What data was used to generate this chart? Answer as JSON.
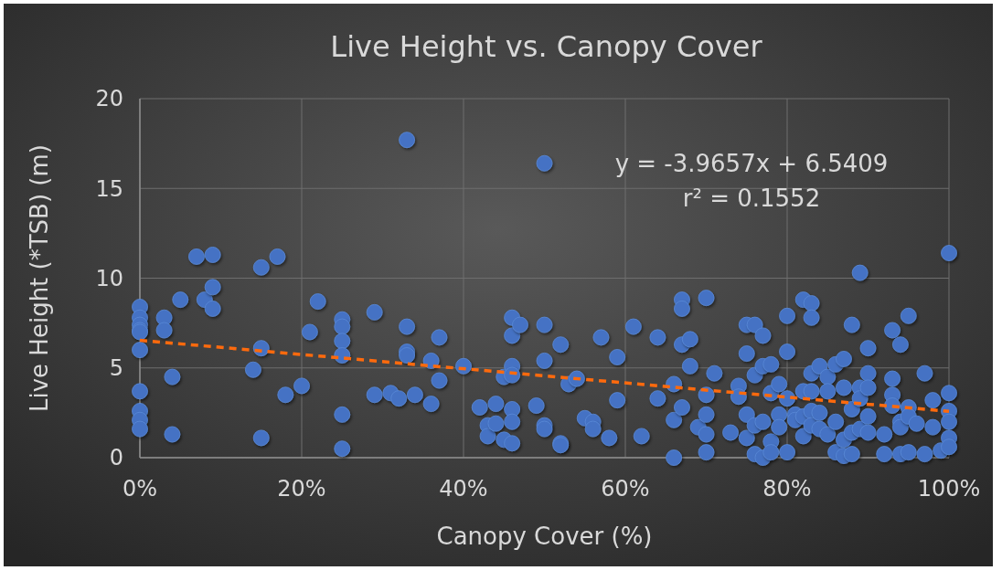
{
  "chart_data": {
    "type": "scatter",
    "title": "Live Height vs. Canopy Cover",
    "xlabel": "Canopy Cover (%)",
    "ylabel": "Live Height (*TSB) (m)",
    "xlim": [
      0,
      1
    ],
    "ylim": [
      0,
      20
    ],
    "xticks": [
      {
        "value": 0,
        "label": "0%"
      },
      {
        "value": 0.2,
        "label": "20%"
      },
      {
        "value": 0.4,
        "label": "40%"
      },
      {
        "value": 0.6,
        "label": "60%"
      },
      {
        "value": 0.8,
        "label": "80%"
      },
      {
        "value": 1,
        "label": "100%"
      }
    ],
    "yticks": [
      0,
      5,
      10,
      15,
      20
    ],
    "grid": true,
    "annotations": [
      "y = -3.9657x + 6.5409",
      "r² = 0.1552"
    ],
    "series": [
      {
        "color": "#4472c4",
        "marker": "circle",
        "x": [
          0,
          0,
          0,
          0,
          0,
          0,
          0,
          0,
          0,
          0,
          0.03,
          0.03,
          0.04,
          0.04,
          0.05,
          0.07,
          0.08,
          0.09,
          0.09,
          0.09,
          0.14,
          0.15,
          0.15,
          0.15,
          0.17,
          0.18,
          0.2,
          0.21,
          0.22,
          0.25,
          0.25,
          0.25,
          0.25,
          0.25,
          0.25,
          0.29,
          0.29,
          0.31,
          0.32,
          0.33,
          0.33,
          0.33,
          0.33,
          0.34,
          0.36,
          0.36,
          0.37,
          0.37,
          0.4,
          0.42,
          0.43,
          0.43,
          0.44,
          0.44,
          0.45,
          0.45,
          0.46,
          0.46,
          0.46,
          0.46,
          0.46,
          0.46,
          0.46,
          0.47,
          0.49,
          0.5,
          0.5,
          0.5,
          0.5,
          0.5,
          0.52,
          0.52,
          0.52,
          0.53,
          0.54,
          0.55,
          0.56,
          0.56,
          0.57,
          0.58,
          0.59,
          0.59,
          0.61,
          0.62,
          0.64,
          0.64,
          0.66,
          0.66,
          0.66,
          0.67,
          0.67,
          0.67,
          0.67,
          0.68,
          0.68,
          0.69,
          0.7,
          0.7,
          0.7,
          0.7,
          0.7,
          0.71,
          0.73,
          0.74,
          0.74,
          0.75,
          0.75,
          0.75,
          0.75,
          0.76,
          0.76,
          0.76,
          0.76,
          0.77,
          0.77,
          0.77,
          0.77,
          0.78,
          0.78,
          0.78,
          0.78,
          0.79,
          0.79,
          0.79,
          0.8,
          0.8,
          0.8,
          0.8,
          0.81,
          0.81,
          0.82,
          0.82,
          0.82,
          0.82,
          0.83,
          0.83,
          0.83,
          0.83,
          0.83,
          0.83,
          0.84,
          0.84,
          0.84,
          0.85,
          0.85,
          0.85,
          0.86,
          0.86,
          0.86,
          0.87,
          0.87,
          0.87,
          0.87,
          0.88,
          0.88,
          0.88,
          0.88,
          0.89,
          0.89,
          0.89,
          0.89,
          0.9,
          0.9,
          0.9,
          0.9,
          0.9,
          0.92,
          0.92,
          0.93,
          0.93,
          0.93,
          0.93,
          0.94,
          0.94,
          0.94,
          0.94,
          0.95,
          0.95,
          0.95,
          0.95,
          0.96,
          0.97,
          0.97,
          0.98,
          0.98,
          0.99,
          1,
          1,
          1,
          1,
          1,
          1
        ],
        "values": [
          8.4,
          7.8,
          7.4,
          7.1,
          7.0,
          6.0,
          3.7,
          2.6,
          2.1,
          1.6,
          7.8,
          7.1,
          4.5,
          1.3,
          8.8,
          11.2,
          8.8,
          11.3,
          9.5,
          8.3,
          4.9,
          10.6,
          6.1,
          1.1,
          11.2,
          3.5,
          4.0,
          7.0,
          8.7,
          7.7,
          7.3,
          6.5,
          5.7,
          2.4,
          0.5,
          8.1,
          3.5,
          3.6,
          3.3,
          17.7,
          7.3,
          5.9,
          5.7,
          3.5,
          5.4,
          3.0,
          6.7,
          4.3,
          5.1,
          2.8,
          1.8,
          1.2,
          3.0,
          1.9,
          4.5,
          1.0,
          7.8,
          6.8,
          5.1,
          4.6,
          2.7,
          2.0,
          0.8,
          7.4,
          2.9,
          16.4,
          7.4,
          5.4,
          1.8,
          1.6,
          6.3,
          0.8,
          0.7,
          4.1,
          4.4,
          2.2,
          2.0,
          1.6,
          6.7,
          1.1,
          5.6,
          3.2,
          7.3,
          1.2,
          6.7,
          3.3,
          4.1,
          2.1,
          0.0,
          8.8,
          8.3,
          6.3,
          2.8,
          6.6,
          5.1,
          1.7,
          8.9,
          3.5,
          2.4,
          1.3,
          0.3,
          4.7,
          1.4,
          4.0,
          3.4,
          7.4,
          5.8,
          2.4,
          1.1,
          7.4,
          4.6,
          1.8,
          0.2,
          6.8,
          5.1,
          2.0,
          0.0,
          5.2,
          3.6,
          0.9,
          0.3,
          4.1,
          2.4,
          1.7,
          7.9,
          5.9,
          3.3,
          0.3,
          2.4,
          2.1,
          8.8,
          3.7,
          2.3,
          1.2,
          8.6,
          7.8,
          4.7,
          3.7,
          2.6,
          1.8,
          5.1,
          2.5,
          1.6,
          4.5,
          3.7,
          1.3,
          5.2,
          2.0,
          0.3,
          5.5,
          3.9,
          1.0,
          0.1,
          7.4,
          2.7,
          1.4,
          0.2,
          10.3,
          3.9,
          3.3,
          1.6,
          6.1,
          4.7,
          3.9,
          2.3,
          1.4,
          1.3,
          0.2,
          7.1,
          4.4,
          3.5,
          2.9,
          6.3,
          2.0,
          1.7,
          0.2,
          7.9,
          2.8,
          2.3,
          0.3,
          1.9,
          4.7,
          0.2,
          3.2,
          1.7,
          0.4,
          11.4,
          3.6,
          2.6,
          2.0,
          1.1,
          0.6
        ]
      },
      {
        "type": "line",
        "color": "#ff6a0d",
        "line_style": "dashed",
        "marker": "none",
        "x": [
          0,
          1
        ],
        "values": [
          6.54,
          2.58
        ]
      }
    ]
  }
}
